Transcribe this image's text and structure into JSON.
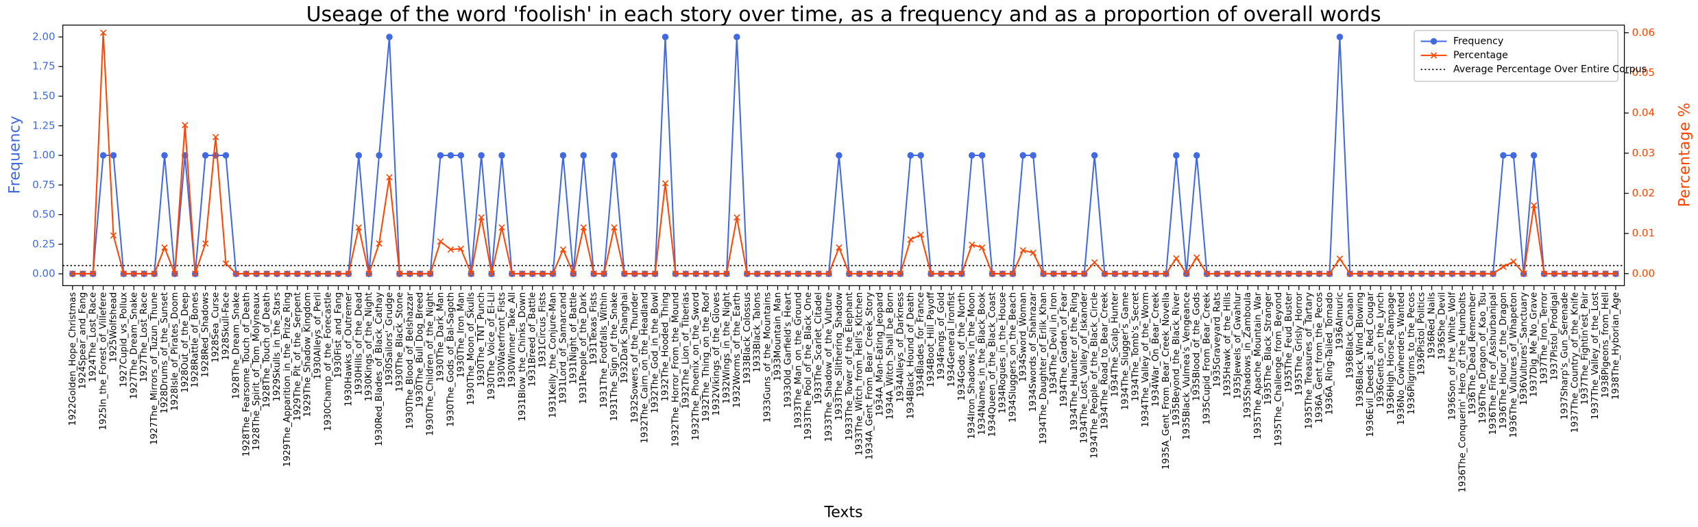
{
  "chart_data": {
    "type": "line",
    "title": "Useage of the word 'foolish' in each story over time, as a frequency and as a proportion of overall words",
    "x_label": "Texts",
    "y_label": "Frequency",
    "y2_label": "Percentage %",
    "categories": [
      "1922Golden_Hope_Christmas",
      "1924Spear_and_Fang",
      "1924The_Lost_Race",
      "1925In_the_Forest_of_Villefere",
      "1925Wolfshead",
      "1927Cupid_vs_Pollux",
      "1927The_Dream_Snake",
      "1927The_Lost_Race",
      "1927The_Mirrors_of_Tuzun_Thune",
      "1928Drums_of_the_Sunset",
      "1928Isle_of_Pirates_Doom",
      "1928Out_of_the_Deep",
      "1928Rattle_of_Bones",
      "1928Red_Shadows",
      "1928Sea_Curse",
      "1928Skull-Face",
      "1928The_Dream_Snake",
      "1928The_Fearsome_Touch_of_Death",
      "1928The_Spirit_of_Tom_Molyneaux",
      "1928The_Touch_of_Death",
      "1929Skulls_in_the_Stars",
      "1929The_Apparition_in_the_Prize_Ring",
      "1929The_Pit_of_the_Serpent",
      "1929The_Shadow_Kingdom",
      "1930Alleys_of_Peril",
      "1930Champ_of_the_Forecastle",
      "1930Fist_and_Fang",
      "1930Hawks_of_Outremer",
      "1930Hills_of_the_Dead",
      "1930Kings_of_the_Night",
      "1930Red_Blades_of_Black_Cathay",
      "1930Sailors'_Grudge",
      "1930The_Black_Stone",
      "1930The_Blood_of_Belshazzar",
      "1930The_Bull_Dog_Breed",
      "1930The_Children_of_the_Night",
      "1930The_Dark_Man",
      "1930The_Gods_of_Bal-Sagoth",
      "1930The_Iron_Man",
      "1930The_Moon_of_Skulls",
      "1930The_TNT_Punch",
      "1930The_Voice_of_El-Lil",
      "1930Waterfront_Fists",
      "1930Winner_Take_All",
      "1931Blow_the_Chinks_Down",
      "1931Breed_of_Battle",
      "1931Circus_Fists",
      "1931Kelly_the_Conjure-Man",
      "1931Lord_of_Samarcand",
      "1931Night_of_Battle",
      "1931People_of_the_Dark",
      "1931Texas_Fists",
      "1931The_Footfalls_Within",
      "1931The_Sign_of_the_Snake",
      "1932Dark_Shanghai",
      "1932Sowers_of_the_Thunder",
      "1932The_Cairn_on_the_Headland",
      "1932The_God_in_the_Bowl",
      "1932The_Hooded_Thing",
      "1932The_Horror_From_the_Mound",
      "1932The_Lion_of_Tiberias",
      "1932The_Phoenix_on_the_Sword",
      "1932The_Thing_on_the_Roof",
      "1932Vikings_of_the_Gloves",
      "1932Wings_in_the_Night",
      "1932Worms_of_the_Earth",
      "1933Black_Colossus",
      "1933Black_Talons",
      "1933Guns_of_the_Mountains",
      "1933Mountain_Man",
      "1933Old_Garfield's_Heart",
      "1933The_Man_on_the_Ground",
      "1933The_Pool_of_the_Black_One",
      "1933The_Scarlet_Citadel",
      "1933The_Shadow_of_the_Vulture",
      "1933The_Slithering_Shadow",
      "1933The_Tower_of_the_Elephant",
      "1933The_Witch_from_Hell's_Kitchen",
      "1934A_Gent_From_Bear_Creek_Story",
      "1934A_Man-Eating_Jeopard",
      "1934A_Witch_Shall_be_Born",
      "1934Alleys_of_Darkness",
      "1934Black_Hound_of_Death",
      "1934Blades_for_France",
      "1934Boot_Hill_Payoff",
      "1934Fangs_of_Gold",
      "1934General_Ironfist",
      "1934Gods_of_the_North",
      "1934Iron_Shadows_in_the_Moon",
      "1934Names_in_the_Black_Book",
      "1934Queen_of_the_Black_Coast",
      "1934Rogues_in_the_House",
      "1934Sluggers_on_the_Beach",
      "1934Sword_Woman",
      "1934Swords_of_Shahrazar",
      "1934The_Daughter_of_Erlik_Khan",
      "1934The_Devil_in_Iron",
      "1934The_Garden_of_Fear",
      "1934The_Haunter_of_the_Ring",
      "1934The_Lost_Valley_of_Iskander",
      "1934The_People_of_the_Black_Circle",
      "1934The_Road_to_Bear_Creek",
      "1934The_Scalp_Hunter",
      "1934The_Slugger's_Game",
      "1934The_Tomb's_Secret",
      "1934The_Valley_of_the_Worm",
      "1934War_On_Bear_Creek",
      "1935A_Gent_From_Bear_Creek_Novella",
      "1935Beyond_the_Black_River",
      "1935Black_Vulmea's_Vengeance",
      "1935Blood_of_the_Gods",
      "1935Cupid_From_Bear_Creek",
      "1935Graveyard_Rats",
      "1935Hawk_of_the_Hills",
      "1935Jewels_of_Gwahlur",
      "1935Shadows_in_Zamboula",
      "1935The_Apache_Mountain_War",
      "1935The_Black_Stranger",
      "1935The_Challenge_from_Beyond",
      "1935The_Feud_Buster",
      "1935The_Grisly_Horror",
      "1935The_Treasures_of_Tartary",
      "1936A_Gent_from_the_Pecos",
      "1936A_Ring-Tailed_Tornado",
      "1936Almuric",
      "1936Black_Canaan",
      "1936Black_Wind_Blowing",
      "1936Evil_Deeds_at_Red_Cougar",
      "1936Gents_on_the_Lynch",
      "1936High_Horse_Rampage",
      "1936No_Cowherders_Wanted",
      "1936Pilgrims_to_the_Pecos",
      "1936Pistol_Politics",
      "1936Red_Nails",
      "1936She_Devil",
      "1936Son_of_the_White_Wolf",
      "1936The_Conquerin'_Hero_of_the_Humbolts",
      "1936The_Dead_Remember",
      "1936The_Dragon_of_Kao_Tsu",
      "1936The_Fire_of_Asshurbanipal",
      "1936The_Hour_of_the_Dragon",
      "1936The_Vultures_of_Whapeton",
      "1936Vultures'_Sanctuary",
      "1937Dig_Me_No_Grave",
      "1937The_Iron_Terror",
      "1937Pistol_Prodigal",
      "1937Sharp's_Gun_Serenade",
      "1937The_Country_of_the_Knife",
      "1937The_Fightin'est_Pair",
      "1937The_Valley_of_the_Lost",
      "1938Pigeons_from_Hell",
      "1938The_Hyborian_Age"
    ],
    "series": [
      {
        "name": "Frequency",
        "color": "#4169e1",
        "marker": "o",
        "axis": "y",
        "values": [
          0,
          0,
          0,
          1,
          1,
          0,
          0,
          0,
          0,
          1,
          0,
          1,
          0,
          1,
          1,
          1,
          0,
          0,
          0,
          0,
          0,
          0,
          0,
          0,
          0,
          0,
          0,
          0,
          1,
          0,
          1,
          2,
          0,
          0,
          0,
          0,
          1,
          1,
          1,
          0,
          1,
          0,
          1,
          0,
          0,
          0,
          0,
          0,
          1,
          0,
          1,
          0,
          0,
          1,
          0,
          0,
          0,
          0,
          2,
          0,
          0,
          0,
          0,
          0,
          0,
          2,
          0,
          0,
          0,
          0,
          0,
          0,
          0,
          0,
          0,
          1,
          0,
          0,
          0,
          0,
          0,
          0,
          1,
          1,
          0,
          0,
          0,
          0,
          1,
          1,
          0,
          0,
          0,
          1,
          1,
          0,
          0,
          0,
          0,
          0,
          1,
          0,
          0,
          0,
          0,
          0,
          0,
          0,
          1,
          0,
          1,
          0,
          0,
          0,
          0,
          0,
          0,
          0,
          0,
          0,
          0,
          0,
          0,
          0,
          2,
          0,
          0,
          0,
          0,
          0,
          0,
          0,
          0,
          0,
          0,
          0,
          0,
          0,
          0,
          0,
          1,
          1,
          0,
          1,
          0,
          0,
          0,
          0,
          0,
          0,
          0,
          0
        ]
      },
      {
        "name": "Percentage",
        "color": "#ff4500",
        "marker": "x",
        "axis": "y2",
        "values": [
          0,
          0,
          0,
          0.06,
          0.0095,
          0,
          0,
          0,
          0,
          0.0065,
          0,
          0.037,
          0,
          0.0075,
          0.034,
          0.0025,
          0,
          0,
          0,
          0,
          0,
          0,
          0,
          0,
          0,
          0,
          0,
          0,
          0.0115,
          0,
          0.0075,
          0.024,
          0,
          0,
          0,
          0,
          0.008,
          0.006,
          0.0062,
          0,
          0.014,
          0,
          0.0115,
          0,
          0,
          0,
          0,
          0,
          0.006,
          0,
          0.0115,
          0,
          0,
          0.0115,
          0,
          0,
          0,
          0,
          0.0225,
          0,
          0,
          0,
          0,
          0,
          0,
          0.014,
          0,
          0,
          0,
          0,
          0,
          0,
          0,
          0,
          0,
          0.0065,
          0,
          0,
          0,
          0,
          0,
          0,
          0.0085,
          0.0097,
          0,
          0,
          0,
          0,
          0.0072,
          0.0065,
          0,
          0,
          0,
          0.0058,
          0.0052,
          0,
          0,
          0,
          0,
          0,
          0.0028,
          0,
          0,
          0,
          0,
          0,
          0,
          0,
          0.0038,
          0,
          0.004,
          0,
          0,
          0,
          0,
          0,
          0,
          0,
          0,
          0,
          0,
          0,
          0,
          0,
          0.0037,
          0,
          0,
          0,
          0,
          0,
          0,
          0,
          0,
          0,
          0,
          0,
          0,
          0,
          0,
          0,
          0.0017,
          0.003,
          0,
          0.017,
          0,
          0,
          0,
          0,
          0,
          0,
          0,
          0
        ]
      }
    ],
    "reference_line": {
      "name": "Average Percentage Over Entire Corpus",
      "value": 0.002,
      "axis": "y2",
      "color": "#000000",
      "style": "dotted"
    },
    "ylim": [
      -0.1,
      2.1
    ],
    "yticks": [
      {
        "value": 0,
        "label": "0.00"
      },
      {
        "value": 0.25,
        "label": "0.25"
      },
      {
        "value": 0.5,
        "label": "0.50"
      },
      {
        "value": 0.75,
        "label": "0.75"
      },
      {
        "value": 1,
        "label": "1.00"
      },
      {
        "value": 1.25,
        "label": "1.25"
      },
      {
        "value": 1.5,
        "label": "1.50"
      },
      {
        "value": 1.75,
        "label": "1.75"
      },
      {
        "value": 2,
        "label": "2.00"
      }
    ],
    "y2lim": [
      -0.003,
      0.0619
    ],
    "y2ticks": [
      {
        "value": 0,
        "label": "0.00"
      },
      {
        "value": 0.01,
        "label": "0.01"
      },
      {
        "value": 0.02,
        "label": "0.02"
      },
      {
        "value": 0.03,
        "label": "0.03"
      },
      {
        "value": 0.04,
        "label": "0.04"
      },
      {
        "value": 0.05,
        "label": "0.05"
      },
      {
        "value": 0.06,
        "label": "0.06"
      }
    ],
    "grid": false,
    "legend": "upper right"
  }
}
